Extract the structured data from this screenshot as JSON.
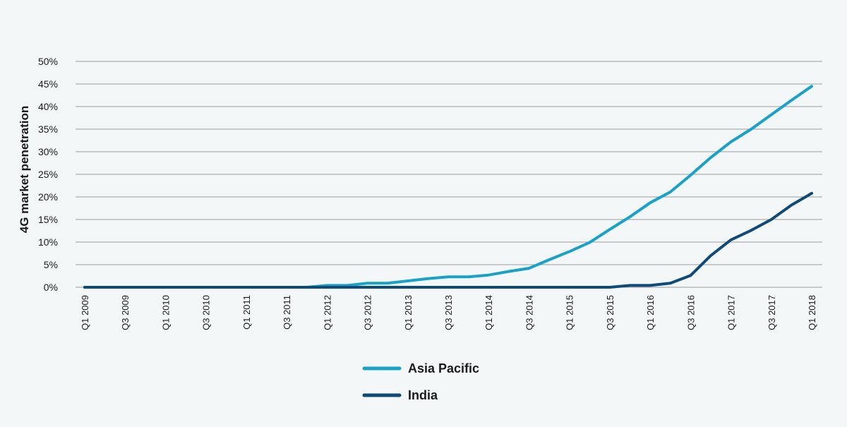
{
  "colors": {
    "background": "#f4f7f8",
    "gridline": "#9a9a9a",
    "axis_text": "#1a1a1a",
    "asia_pacific": "#19a2c6",
    "india": "#0f4a78"
  },
  "chart_data": {
    "type": "line",
    "title": "",
    "ylabel": "4G market penetration",
    "xlabel": "",
    "ylim": [
      0,
      50
    ],
    "grid": true,
    "legend_position": "bottom-center",
    "y_ticks": [
      "0%",
      "5%",
      "10%",
      "15%",
      "20%",
      "25%",
      "30%",
      "35%",
      "40%",
      "45%",
      "50%"
    ],
    "x": [
      "Q1 2009",
      "Q2 2009",
      "Q3 2009",
      "Q4 2009",
      "Q1 2010",
      "Q2 2010",
      "Q3 2010",
      "Q4 2010",
      "Q1 2011",
      "Q2 2011",
      "Q3 2011",
      "Q4 2011",
      "Q1 2012",
      "Q2 2012",
      "Q3 2012",
      "Q4 2012",
      "Q1 2013",
      "Q2 2013",
      "Q3 2013",
      "Q4 2013",
      "Q1 2014",
      "Q2 2014",
      "Q3 2014",
      "Q4 2014",
      "Q1 2015",
      "Q2 2015",
      "Q3 2015",
      "Q4 2015",
      "Q1 2016",
      "Q2 2016",
      "Q3 2016",
      "Q4 2016",
      "Q1 2017",
      "Q2 2017",
      "Q3 2017",
      "Q4 2017",
      "Q1 2018"
    ],
    "x_tick_labels": [
      "Q1 2009",
      "Q3 2009",
      "Q1 2010",
      "Q3 2010",
      "Q1 2011",
      "Q3 2011",
      "Q1 2012",
      "Q3 2012",
      "Q1 2013",
      "Q3 2013",
      "Q1 2014",
      "Q3 2014",
      "Q1 2015",
      "Q3 2015",
      "Q1 2016",
      "Q3 2016",
      "Q1 2017",
      "Q3 2017",
      "Q1 2018"
    ],
    "series": [
      {
        "name": "Asia Pacific",
        "color": "#19a2c6",
        "values": [
          0,
          0,
          0,
          0,
          0,
          0,
          0,
          0,
          0,
          0,
          0,
          0,
          0.4,
          0.4,
          0.9,
          0.9,
          1.4,
          1.9,
          2.3,
          2.3,
          2.7,
          3.5,
          4.2,
          6.1,
          7.9,
          9.9,
          12.8,
          15.6,
          18.7,
          21.1,
          24.8,
          28.7,
          32.2,
          35.0,
          38.2,
          41.4,
          44.5
        ]
      },
      {
        "name": "India",
        "color": "#0f4a78",
        "values": [
          0,
          0,
          0,
          0,
          0,
          0,
          0,
          0,
          0,
          0,
          0,
          0,
          0,
          0,
          0,
          0,
          0,
          0,
          0,
          0,
          0,
          0,
          0,
          0,
          0,
          0,
          0,
          0.4,
          0.4,
          0.9,
          2.6,
          7.0,
          10.5,
          12.6,
          15.0,
          18.2,
          20.8
        ]
      }
    ]
  }
}
